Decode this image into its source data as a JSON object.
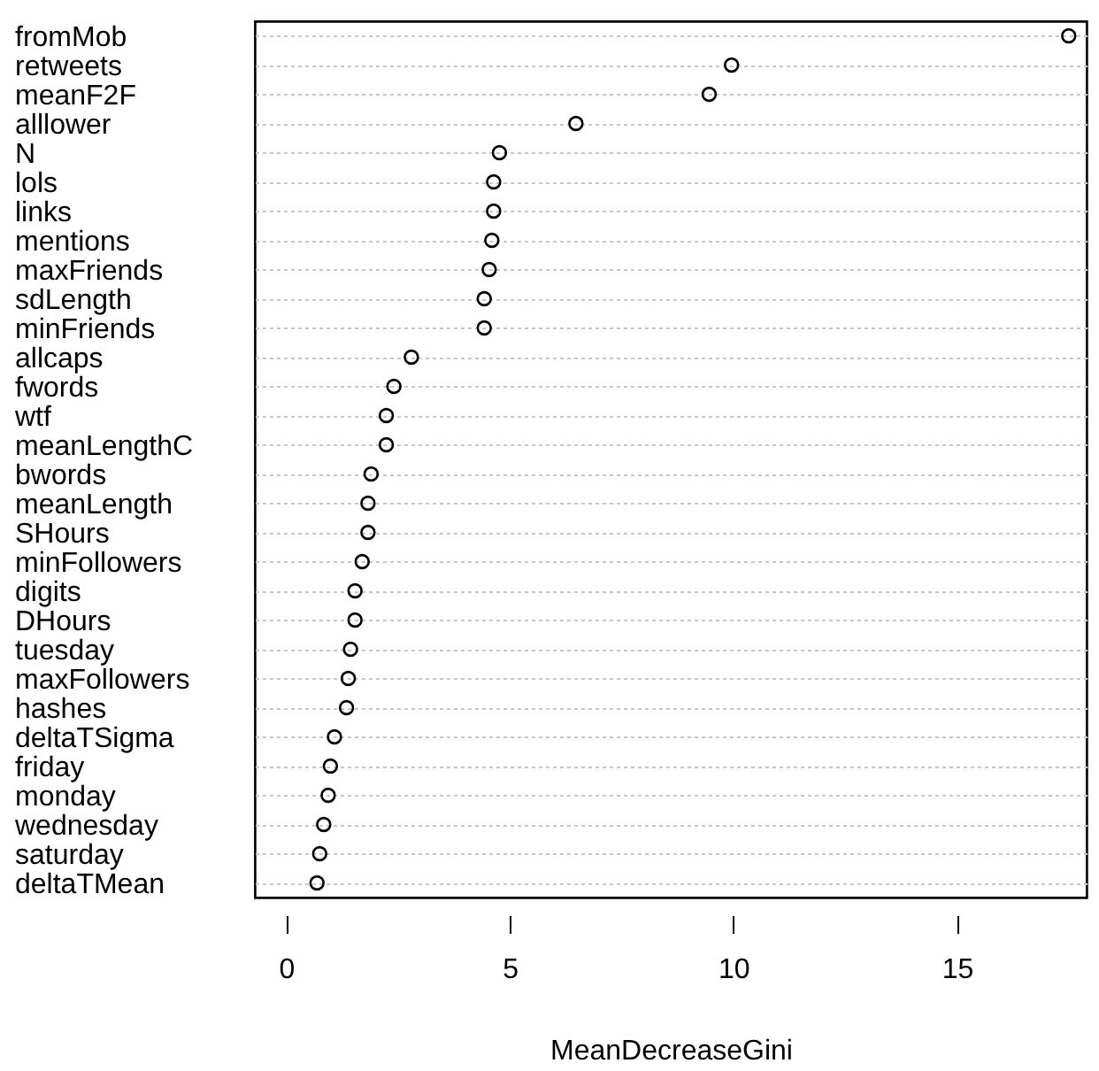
{
  "chart_data": {
    "type": "scatter",
    "xlabel": "MeanDecreaseGini",
    "categories": [
      "fromMob",
      "retweets",
      "meanF2F",
      "alllower",
      "N",
      "lols",
      "links",
      "mentions",
      "maxFriends",
      "sdLength",
      "minFriends",
      "allcaps",
      "fwords",
      "wtf",
      "meanLengthC",
      "bwords",
      "meanLength",
      "SHours",
      "minFollowers",
      "digits",
      "DHours",
      "tuesday",
      "maxFollowers",
      "hashes",
      "deltaTSigma",
      "friday",
      "monday",
      "wednesday",
      "saturday",
      "deltaTMean"
    ],
    "orientation": "horizontal",
    "values": [
      17.5,
      9.96,
      9.46,
      6.48,
      4.77,
      4.64,
      4.64,
      4.6,
      4.54,
      4.43,
      4.43,
      2.8,
      2.41,
      2.24,
      2.24,
      1.9,
      1.83,
      1.83,
      1.7,
      1.54,
      1.54,
      1.44,
      1.39,
      1.35,
      1.08,
      0.99,
      0.94,
      0.84,
      0.75,
      0.69
    ],
    "color": "#000000",
    "marker": "circle",
    "grid": "y",
    "xlim": [
      -0.7,
      17.9
    ],
    "xticks": [
      0,
      5,
      10,
      15
    ]
  }
}
